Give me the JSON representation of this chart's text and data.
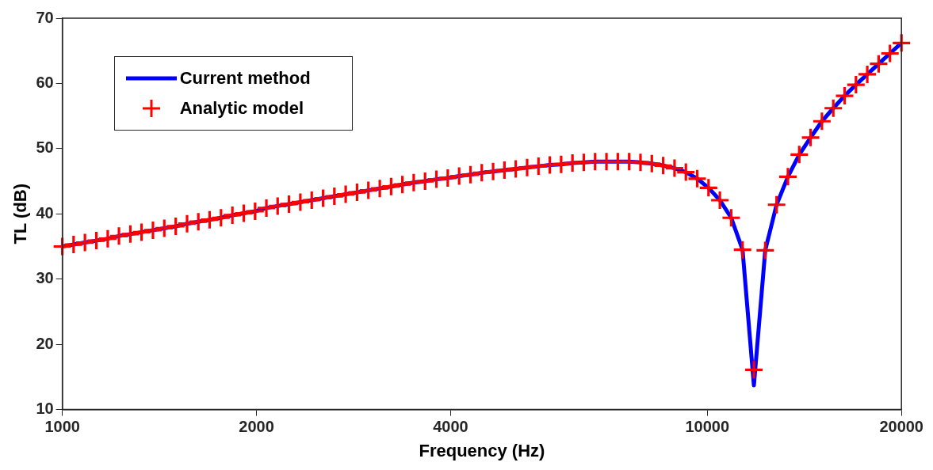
{
  "chart_data": {
    "type": "line",
    "xlabel": "Frequency (Hz)",
    "ylabel": "TL (dB)",
    "log": "x",
    "xlim": [
      1000,
      20000
    ],
    "xticks": [
      1000,
      2000,
      4000,
      10000,
      20000
    ],
    "ylim": [
      10,
      70
    ],
    "yticks": [
      10,
      20,
      30,
      40,
      50,
      60,
      70
    ],
    "legend": "top left",
    "x": [
      1000,
      1041,
      1084,
      1129,
      1176,
      1224,
      1275,
      1327,
      1382,
      1439,
      1499,
      1561,
      1625,
      1692,
      1762,
      1835,
      1911,
      1990,
      2072,
      2157,
      2246,
      2339,
      2436,
      2537,
      2641,
      2750,
      2864,
      2982,
      3106,
      3234,
      3367,
      3506,
      3651,
      3802,
      3959,
      4123,
      4293,
      4470,
      4655,
      4847,
      5047,
      5256,
      5473,
      5699,
      5934,
      6179,
      6435,
      6700,
      6977,
      7265,
      7566,
      7878,
      8204,
      8543,
      8896,
      9263,
      9646,
      10044,
      10459,
      10891,
      11341,
      11810,
      12298,
      12806,
      13335,
      13886,
      14460,
      15057,
      15680,
      16327,
      17002,
      17704,
      18436,
      19197,
      20000
    ],
    "series": [
      {
        "name": "Current method",
        "color": "#0000ff",
        "marker": "none",
        "values": [
          35.0,
          35.3,
          35.6,
          35.9,
          36.2,
          36.6,
          36.9,
          37.2,
          37.5,
          37.8,
          38.1,
          38.5,
          38.8,
          39.1,
          39.4,
          39.8,
          40.1,
          40.4,
          40.9,
          41.2,
          41.5,
          41.8,
          42.1,
          42.4,
          42.7,
          43.0,
          43.3,
          43.6,
          43.9,
          44.2,
          44.5,
          44.8,
          45.0,
          45.3,
          45.5,
          45.8,
          46.0,
          46.3,
          46.5,
          46.7,
          46.9,
          47.1,
          47.3,
          47.5,
          47.6,
          47.8,
          47.9,
          48.0,
          48.0,
          48.0,
          48.0,
          47.9,
          47.7,
          47.4,
          47.0,
          46.4,
          45.4,
          44.0,
          42.1,
          39.4,
          34.5,
          13.7,
          34.4,
          41.4,
          45.7,
          49.1,
          51.7,
          54.2,
          56.2,
          58.1,
          59.8,
          61.4,
          63.0,
          64.6,
          66.2
        ]
      },
      {
        "name": "Analytic model",
        "type": "scatter",
        "color": "#ff0000",
        "marker": "cross",
        "values": [
          35.0,
          35.3,
          35.6,
          35.9,
          36.2,
          36.6,
          36.9,
          37.2,
          37.5,
          37.8,
          38.1,
          38.5,
          38.8,
          39.1,
          39.4,
          39.8,
          40.1,
          40.4,
          40.9,
          41.2,
          41.5,
          41.8,
          42.1,
          42.4,
          42.7,
          43.0,
          43.3,
          43.6,
          43.9,
          44.2,
          44.5,
          44.8,
          45.0,
          45.3,
          45.5,
          45.8,
          46.0,
          46.3,
          46.5,
          46.7,
          46.9,
          47.1,
          47.3,
          47.5,
          47.6,
          47.8,
          47.9,
          48.0,
          48.0,
          48.0,
          48.0,
          47.9,
          47.7,
          47.4,
          47.0,
          46.4,
          45.4,
          44.0,
          42.1,
          39.4,
          34.5,
          16.1,
          34.4,
          41.4,
          45.7,
          49.1,
          51.7,
          54.2,
          56.2,
          58.1,
          59.8,
          61.4,
          63.0,
          64.6,
          66.2
        ]
      }
    ]
  }
}
